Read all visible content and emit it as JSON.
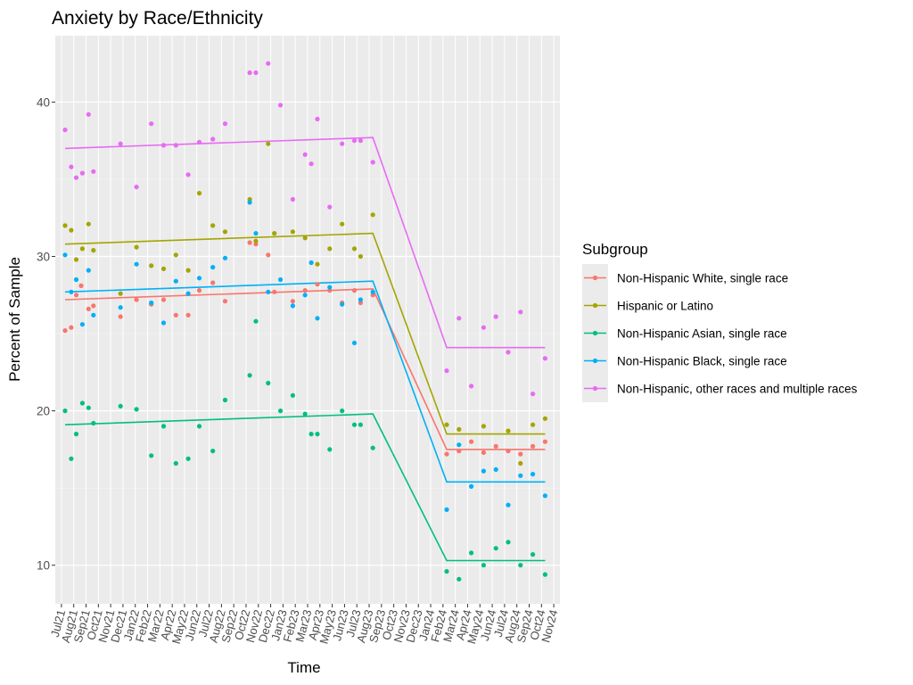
{
  "chart_data": {
    "type": "scatter",
    "title": "Anxiety by Race/Ethnicity",
    "xlabel": "Time",
    "ylabel": "Percent of Sample",
    "ylim": [
      7.5,
      44.3
    ],
    "yticks": [
      10,
      20,
      30,
      40
    ],
    "grid": true,
    "legend_title": "Subgroup",
    "legend_position": "right",
    "months": [
      "Jul21",
      "Aug21",
      "Sep21",
      "Oct21",
      "Nov21",
      "Dec21",
      "Jan22",
      "Feb22",
      "Mar22",
      "Apr22",
      "May22",
      "Jun22",
      "Jul22",
      "Aug22",
      "Sep22",
      "Oct22",
      "Nov22",
      "Dec22",
      "Jan23",
      "Feb23",
      "Mar23",
      "Apr23",
      "May23",
      "Jun23",
      "Jul23",
      "Aug23",
      "Sep23",
      "Oct23",
      "Nov23",
      "Dec23",
      "Jan24",
      "Feb24",
      "Mar24",
      "Apr24",
      "May24",
      "Jun24",
      "Jul24",
      "Aug24",
      "Sep24",
      "Oct24",
      "Nov24"
    ],
    "series": [
      {
        "name": "Non-Hispanic White, single race",
        "color": "#F8766D",
        "points": [
          [
            0.3,
            25.2
          ],
          [
            0.8,
            25.4
          ],
          [
            1.2,
            27.5
          ],
          [
            1.6,
            28.1
          ],
          [
            2.2,
            26.6
          ],
          [
            2.6,
            26.8
          ],
          [
            4.8,
            26.1
          ],
          [
            6.1,
            27.2
          ],
          [
            7.3,
            26.9
          ],
          [
            8.3,
            27.2
          ],
          [
            9.3,
            26.2
          ],
          [
            10.3,
            26.2
          ],
          [
            11.2,
            27.8
          ],
          [
            12.3,
            28.3
          ],
          [
            13.3,
            27.1
          ],
          [
            15.3,
            30.9
          ],
          [
            15.8,
            30.8
          ],
          [
            16.8,
            30.1
          ],
          [
            17.3,
            27.7
          ],
          [
            18.8,
            27.1
          ],
          [
            19.8,
            27.8
          ],
          [
            20.8,
            28.2
          ],
          [
            21.8,
            27.8
          ],
          [
            22.8,
            27.0
          ],
          [
            23.8,
            27.8
          ],
          [
            24.3,
            27.0
          ],
          [
            25.3,
            27.5
          ],
          [
            31.3,
            17.2
          ],
          [
            32.3,
            17.4
          ],
          [
            33.3,
            18.0
          ],
          [
            34.3,
            17.3
          ],
          [
            35.3,
            17.7
          ],
          [
            36.3,
            17.4
          ],
          [
            37.3,
            17.2
          ],
          [
            38.3,
            17.7
          ],
          [
            39.3,
            18.0
          ]
        ],
        "trend": [
          [
            0.3,
            27.2
          ],
          [
            25.3,
            27.9
          ],
          [
            31.3,
            17.5
          ],
          [
            39.3,
            17.5
          ]
        ]
      },
      {
        "name": "Hispanic or Latino",
        "color": "#A3A500",
        "points": [
          [
            0.3,
            32.0
          ],
          [
            0.8,
            31.7
          ],
          [
            1.2,
            29.8
          ],
          [
            1.7,
            30.5
          ],
          [
            2.2,
            32.1
          ],
          [
            2.6,
            30.4
          ],
          [
            4.8,
            27.6
          ],
          [
            6.1,
            30.6
          ],
          [
            7.3,
            29.4
          ],
          [
            8.3,
            29.2
          ],
          [
            9.3,
            30.1
          ],
          [
            10.3,
            29.1
          ],
          [
            11.2,
            34.1
          ],
          [
            12.3,
            32.0
          ],
          [
            13.3,
            31.6
          ],
          [
            15.3,
            33.7
          ],
          [
            15.8,
            31.0
          ],
          [
            16.8,
            37.3
          ],
          [
            17.3,
            31.5
          ],
          [
            18.8,
            31.6
          ],
          [
            19.8,
            31.2
          ],
          [
            20.8,
            29.5
          ],
          [
            21.8,
            30.5
          ],
          [
            22.8,
            32.1
          ],
          [
            23.8,
            30.5
          ],
          [
            24.3,
            30.0
          ],
          [
            25.3,
            32.7
          ],
          [
            31.3,
            19.1
          ],
          [
            32.3,
            18.8
          ],
          [
            34.3,
            19.0
          ],
          [
            36.3,
            18.7
          ],
          [
            37.3,
            16.6
          ],
          [
            38.3,
            19.1
          ],
          [
            39.3,
            19.5
          ]
        ],
        "trend": [
          [
            0.3,
            30.8
          ],
          [
            25.3,
            31.5
          ],
          [
            31.3,
            18.5
          ],
          [
            39.3,
            18.5
          ]
        ]
      },
      {
        "name": "Non-Hispanic Asian, single race",
        "color": "#00BF7D",
        "points": [
          [
            0.3,
            20.0
          ],
          [
            0.8,
            16.9
          ],
          [
            1.2,
            18.5
          ],
          [
            1.7,
            20.5
          ],
          [
            2.2,
            20.2
          ],
          [
            2.6,
            19.2
          ],
          [
            4.8,
            20.3
          ],
          [
            6.1,
            20.1
          ],
          [
            7.3,
            17.1
          ],
          [
            8.3,
            19.0
          ],
          [
            9.3,
            16.6
          ],
          [
            10.3,
            16.9
          ],
          [
            11.2,
            19.0
          ],
          [
            12.3,
            17.4
          ],
          [
            13.3,
            20.7
          ],
          [
            15.3,
            22.3
          ],
          [
            15.8,
            25.8
          ],
          [
            16.8,
            21.8
          ],
          [
            17.8,
            20.0
          ],
          [
            18.8,
            21.0
          ],
          [
            19.8,
            19.8
          ],
          [
            20.3,
            18.5
          ],
          [
            20.8,
            18.5
          ],
          [
            21.8,
            17.5
          ],
          [
            22.8,
            20.0
          ],
          [
            23.8,
            19.1
          ],
          [
            24.3,
            19.1
          ],
          [
            25.3,
            17.6
          ],
          [
            31.3,
            9.6
          ],
          [
            32.3,
            9.1
          ],
          [
            33.3,
            10.8
          ],
          [
            34.3,
            10.0
          ],
          [
            35.3,
            11.1
          ],
          [
            36.3,
            11.5
          ],
          [
            37.3,
            10.0
          ],
          [
            38.3,
            10.7
          ],
          [
            39.3,
            9.4
          ]
        ],
        "trend": [
          [
            0.3,
            19.1
          ],
          [
            25.3,
            19.8
          ],
          [
            31.3,
            10.3
          ],
          [
            39.3,
            10.3
          ]
        ]
      },
      {
        "name": "Non-Hispanic Black, single race",
        "color": "#00B0F6",
        "points": [
          [
            0.3,
            30.1
          ],
          [
            0.8,
            27.7
          ],
          [
            1.2,
            28.5
          ],
          [
            1.7,
            25.6
          ],
          [
            2.2,
            29.1
          ],
          [
            2.6,
            26.2
          ],
          [
            4.8,
            26.7
          ],
          [
            6.1,
            29.5
          ],
          [
            7.3,
            27.0
          ],
          [
            8.3,
            25.7
          ],
          [
            9.3,
            28.4
          ],
          [
            10.3,
            27.6
          ],
          [
            11.2,
            28.6
          ],
          [
            12.3,
            29.3
          ],
          [
            13.3,
            29.9
          ],
          [
            15.3,
            33.5
          ],
          [
            15.8,
            31.5
          ],
          [
            16.8,
            27.7
          ],
          [
            17.8,
            28.5
          ],
          [
            18.8,
            26.8
          ],
          [
            19.8,
            27.5
          ],
          [
            20.3,
            29.6
          ],
          [
            20.8,
            26.0
          ],
          [
            21.8,
            28.0
          ],
          [
            22.8,
            26.9
          ],
          [
            23.8,
            24.4
          ],
          [
            24.3,
            27.2
          ],
          [
            25.3,
            27.7
          ],
          [
            31.3,
            13.6
          ],
          [
            32.3,
            17.8
          ],
          [
            33.3,
            15.1
          ],
          [
            34.3,
            16.1
          ],
          [
            35.3,
            16.2
          ],
          [
            36.3,
            13.9
          ],
          [
            37.3,
            15.8
          ],
          [
            38.3,
            15.9
          ],
          [
            39.3,
            14.5
          ]
        ],
        "trend": [
          [
            0.3,
            27.7
          ],
          [
            25.3,
            28.4
          ],
          [
            31.3,
            15.4
          ],
          [
            39.3,
            15.4
          ]
        ]
      },
      {
        "name": "Non-Hispanic, other races and multiple races",
        "color": "#E76BF3",
        "points": [
          [
            0.3,
            38.2
          ],
          [
            0.8,
            35.8
          ],
          [
            1.2,
            35.1
          ],
          [
            1.7,
            35.4
          ],
          [
            2.2,
            39.2
          ],
          [
            2.6,
            35.5
          ],
          [
            4.8,
            37.3
          ],
          [
            6.1,
            34.5
          ],
          [
            7.3,
            38.6
          ],
          [
            8.3,
            37.2
          ],
          [
            9.3,
            37.2
          ],
          [
            10.3,
            35.3
          ],
          [
            11.2,
            37.4
          ],
          [
            12.3,
            37.6
          ],
          [
            13.3,
            38.6
          ],
          [
            15.3,
            41.9
          ],
          [
            15.8,
            41.9
          ],
          [
            16.8,
            42.5
          ],
          [
            17.8,
            39.8
          ],
          [
            18.8,
            33.7
          ],
          [
            19.8,
            36.6
          ],
          [
            20.3,
            36.0
          ],
          [
            20.8,
            38.9
          ],
          [
            21.8,
            33.2
          ],
          [
            22.8,
            37.3
          ],
          [
            23.8,
            37.5
          ],
          [
            24.3,
            37.5
          ],
          [
            25.3,
            36.1
          ],
          [
            31.3,
            22.6
          ],
          [
            32.3,
            26.0
          ],
          [
            33.3,
            21.6
          ],
          [
            34.3,
            25.4
          ],
          [
            35.3,
            26.1
          ],
          [
            36.3,
            23.8
          ],
          [
            37.3,
            26.4
          ],
          [
            38.3,
            21.1
          ],
          [
            39.3,
            23.4
          ]
        ],
        "trend": [
          [
            0.3,
            37.0
          ],
          [
            25.3,
            37.7
          ],
          [
            31.3,
            24.1
          ],
          [
            39.3,
            24.1
          ]
        ]
      }
    ]
  }
}
